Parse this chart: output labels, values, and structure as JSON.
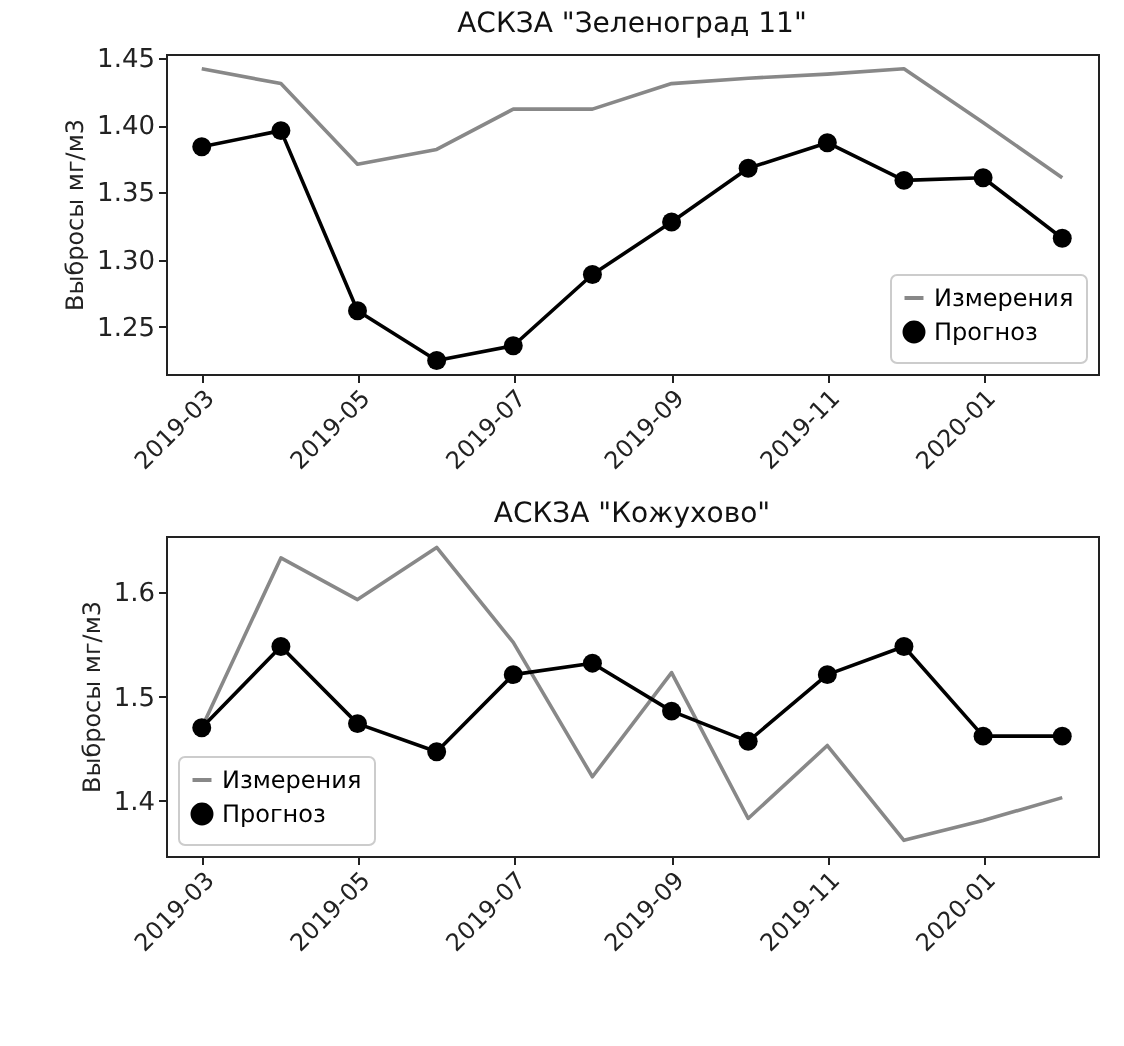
{
  "chart_data": [
    {
      "type": "line",
      "title": "АСКЗА \"Зеленоград 11\"",
      "ylabel": "Выбросы мг/м3",
      "x": [
        "2019-03",
        "2019-04",
        "2019-05",
        "2019-06",
        "2019-07",
        "2019-08",
        "2019-09",
        "2019-10",
        "2019-11",
        "2019-12",
        "2020-01",
        "2020-02"
      ],
      "series": [
        {
          "name": "Измерения",
          "color": "#888888",
          "marker": "none",
          "values": [
            1.442,
            1.431,
            1.371,
            1.382,
            1.412,
            1.412,
            1.431,
            1.435,
            1.438,
            1.442,
            1.402,
            1.361
          ]
        },
        {
          "name": "Прогноз",
          "color": "#000000",
          "marker": "circle",
          "values": [
            1.384,
            1.396,
            1.262,
            1.225,
            1.236,
            1.289,
            1.328,
            1.368,
            1.387,
            1.359,
            1.361,
            1.316
          ]
        }
      ],
      "xlim": [
        "2019-02-15",
        "2020-02-15"
      ],
      "xticks": [
        "2019-03",
        "2019-05",
        "2019-07",
        "2019-09",
        "2019-11",
        "2020-01"
      ],
      "ylim": [
        1.215,
        1.453
      ],
      "yticks": [
        {
          "value": 1.25,
          "label": "1.25"
        },
        {
          "value": 1.3,
          "label": "1.30"
        },
        {
          "value": 1.35,
          "label": "1.35"
        },
        {
          "value": 1.4,
          "label": "1.40"
        },
        {
          "value": 1.45,
          "label": "1.45"
        }
      ],
      "grid": false,
      "legend": "bottom right"
    },
    {
      "type": "line",
      "title": "АСКЗА \"Кожухово\"",
      "ylabel": "Выбросы мг/м3",
      "x": [
        "2019-03",
        "2019-04",
        "2019-05",
        "2019-06",
        "2019-07",
        "2019-08",
        "2019-09",
        "2019-10",
        "2019-11",
        "2019-12",
        "2020-01",
        "2020-02"
      ],
      "series": [
        {
          "name": "Измерения",
          "color": "#888888",
          "marker": "none",
          "values": [
            1.47,
            1.633,
            1.593,
            1.643,
            1.552,
            1.423,
            1.523,
            1.383,
            1.453,
            1.362,
            1.381,
            1.403
          ]
        },
        {
          "name": "Прогноз",
          "color": "#000000",
          "marker": "circle",
          "values": [
            1.47,
            1.548,
            1.474,
            1.447,
            1.521,
            1.532,
            1.486,
            1.457,
            1.521,
            1.548,
            1.462,
            1.462
          ]
        }
      ],
      "xlim": [
        "2019-02-15",
        "2020-02-15"
      ],
      "xticks": [
        "2019-03",
        "2019-05",
        "2019-07",
        "2019-09",
        "2019-11",
        "2020-01"
      ],
      "ylim": [
        1.347,
        1.654
      ],
      "yticks": [
        1.4,
        1.5,
        1.6
      ],
      "grid": false,
      "legend": "bottom left"
    }
  ]
}
